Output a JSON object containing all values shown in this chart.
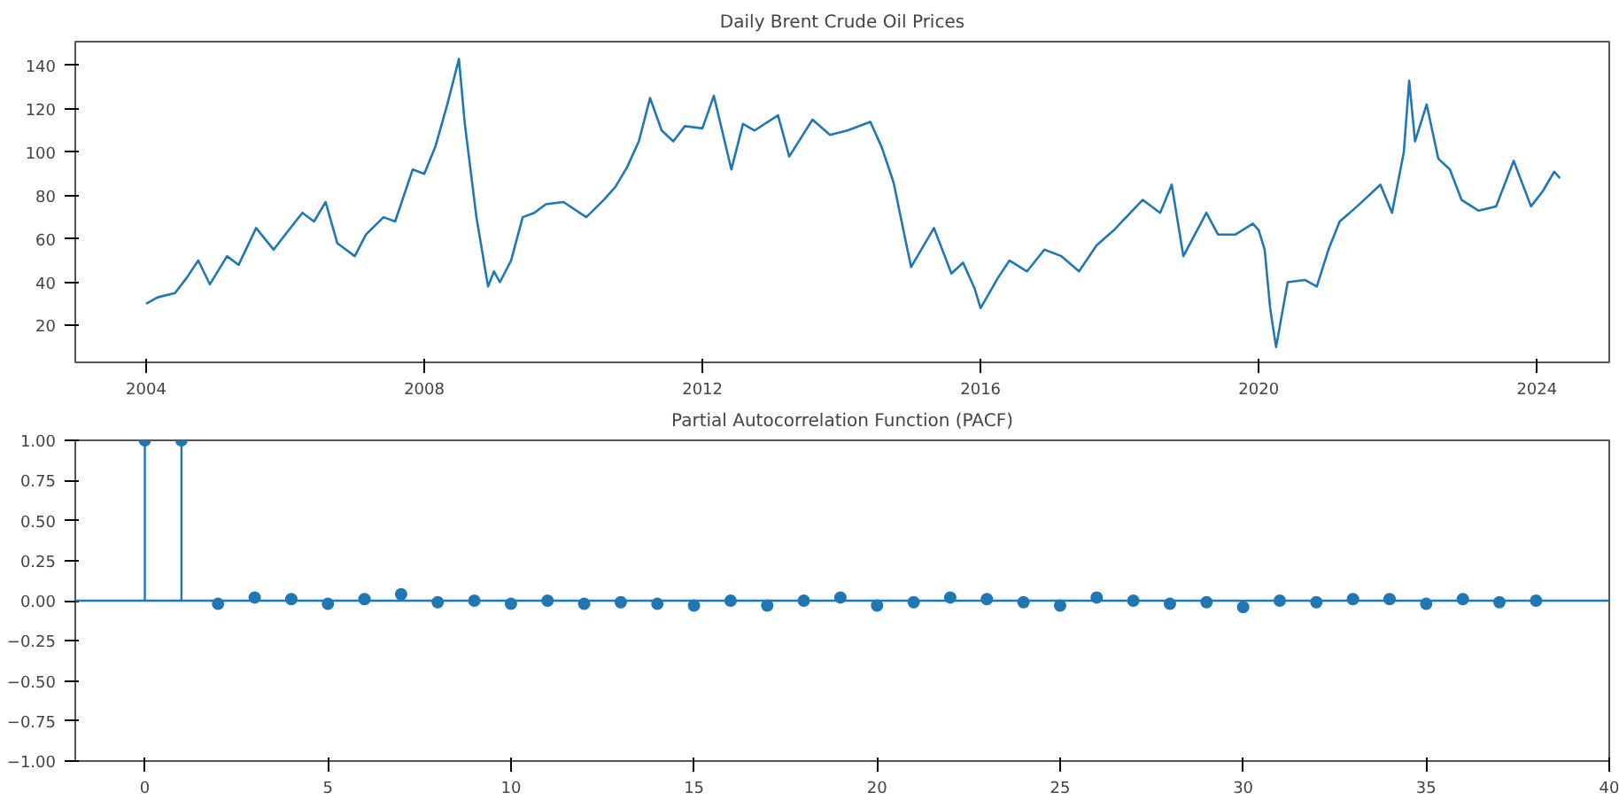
{
  "chart_data": [
    {
      "type": "line",
      "title": "Daily Brent Crude Oil Prices",
      "x": [
        "2004-01",
        "2004-03",
        "2004-06",
        "2004-08",
        "2004-10",
        "2004-12",
        "2005-03",
        "2005-05",
        "2005-08",
        "2005-11",
        "2006-01",
        "2006-04",
        "2006-06",
        "2006-08",
        "2006-10",
        "2007-01",
        "2007-03",
        "2007-06",
        "2007-08",
        "2007-11",
        "2008-01",
        "2008-03",
        "2008-05",
        "2008-07",
        "2008-08",
        "2008-10",
        "2008-12",
        "2009-01",
        "2009-02",
        "2009-04",
        "2009-06",
        "2009-08",
        "2009-10",
        "2010-01",
        "2010-05",
        "2010-08",
        "2010-10",
        "2010-12",
        "2011-02",
        "2011-04",
        "2011-06",
        "2011-08",
        "2011-10",
        "2012-01",
        "2012-03",
        "2012-06",
        "2012-08",
        "2012-10",
        "2013-02",
        "2013-04",
        "2013-08",
        "2013-11",
        "2014-02",
        "2014-06",
        "2014-08",
        "2014-10",
        "2014-12",
        "2015-01",
        "2015-05",
        "2015-08",
        "2015-10",
        "2015-12",
        "2016-01",
        "2016-04",
        "2016-06",
        "2016-09",
        "2016-12",
        "2017-03",
        "2017-06",
        "2017-09",
        "2017-12",
        "2018-05",
        "2018-08",
        "2018-10",
        "2018-12",
        "2019-04",
        "2019-06",
        "2019-09",
        "2019-12",
        "2020-01",
        "2020-02",
        "2020-03",
        "2020-04",
        "2020-06",
        "2020-09",
        "2020-11",
        "2021-01",
        "2021-03",
        "2021-06",
        "2021-10",
        "2021-12",
        "2022-02",
        "2022-03",
        "2022-04",
        "2022-06",
        "2022-08",
        "2022-10",
        "2022-12",
        "2023-03",
        "2023-06",
        "2023-09",
        "2023-12",
        "2024-02",
        "2024-04",
        "2024-05"
      ],
      "series": [
        {
          "color": "#1f77b4",
          "values": [
            30,
            33,
            35,
            42,
            50,
            39,
            52,
            48,
            65,
            55,
            62,
            72,
            68,
            77,
            58,
            52,
            62,
            70,
            68,
            92,
            90,
            103,
            122,
            143,
            113,
            70,
            38,
            45,
            40,
            50,
            70,
            72,
            76,
            77,
            70,
            78,
            84,
            93,
            105,
            125,
            110,
            105,
            112,
            111,
            126,
            92,
            113,
            110,
            117,
            98,
            115,
            108,
            110,
            114,
            102,
            86,
            60,
            47,
            65,
            44,
            49,
            37,
            28,
            42,
            50,
            45,
            55,
            52,
            45,
            57,
            64,
            78,
            72,
            85,
            52,
            72,
            62,
            62,
            67,
            64,
            55,
            28,
            10,
            40,
            41,
            38,
            55,
            68,
            75,
            85,
            72,
            100,
            133,
            105,
            122,
            97,
            92,
            78,
            73,
            75,
            96,
            75,
            82,
            91,
            88
          ]
        }
      ],
      "xlim": [
        "2002-12-25",
        "2025-01-15"
      ],
      "xticks": [
        "2004",
        "2008",
        "2012",
        "2016",
        "2020",
        "2024"
      ],
      "ylim": [
        3,
        151
      ],
      "yticks": [
        20,
        40,
        60,
        80,
        100,
        120,
        140
      ],
      "grid": false
    },
    {
      "type": "lollipop",
      "title": "Partial Autocorrelation Function (PACF)",
      "marker": "circle",
      "x": [
        0,
        1,
        2,
        3,
        4,
        5,
        6,
        7,
        8,
        9,
        10,
        11,
        12,
        13,
        14,
        15,
        16,
        17,
        18,
        19,
        20,
        21,
        22,
        23,
        24,
        25,
        26,
        27,
        28,
        29,
        30,
        31,
        32,
        33,
        34,
        35,
        36,
        37,
        38
      ],
      "series": [
        {
          "color": "#1f77b4",
          "values": [
            1,
            1,
            -0.02,
            0.02,
            0.01,
            -0.02,
            0.01,
            0.04,
            -0.01,
            0,
            -0.02,
            0,
            -0.02,
            -0.01,
            -0.02,
            -0.03,
            0,
            -0.03,
            0,
            0.02,
            -0.03,
            -0.01,
            0.02,
            0.01,
            -0.01,
            -0.03,
            0.02,
            0,
            -0.02,
            -0.01,
            -0.04,
            0,
            -0.01,
            0.01,
            0.01,
            -0.02,
            0.01,
            -0.01,
            0
          ]
        }
      ],
      "ref_lines": [
        {
          "axis": "y",
          "value": 0,
          "color": "#1f77b4"
        }
      ],
      "bands": [
        {
          "axis": "y",
          "from": -0.013,
          "to": 0.013,
          "color": "#1f77b4"
        }
      ],
      "xlim": [
        -1.9,
        40
      ],
      "xticks": [
        0,
        5,
        10,
        15,
        20,
        25,
        30,
        35,
        40
      ],
      "ylim": [
        -1,
        1
      ],
      "yticks": [
        {
          "value": -1,
          "label": "−1.00"
        },
        {
          "value": -0.75,
          "label": "−0.75"
        },
        {
          "value": -0.5,
          "label": "−0.50"
        },
        {
          "value": -0.25,
          "label": "−0.25"
        },
        {
          "value": 0,
          "label": "0.00"
        },
        {
          "value": 0.25,
          "label": "0.25"
        },
        {
          "value": 0.5,
          "label": "0.50"
        },
        {
          "value": 0.75,
          "label": "0.75"
        },
        {
          "value": 1,
          "label": "1.00"
        }
      ],
      "grid": false
    }
  ]
}
